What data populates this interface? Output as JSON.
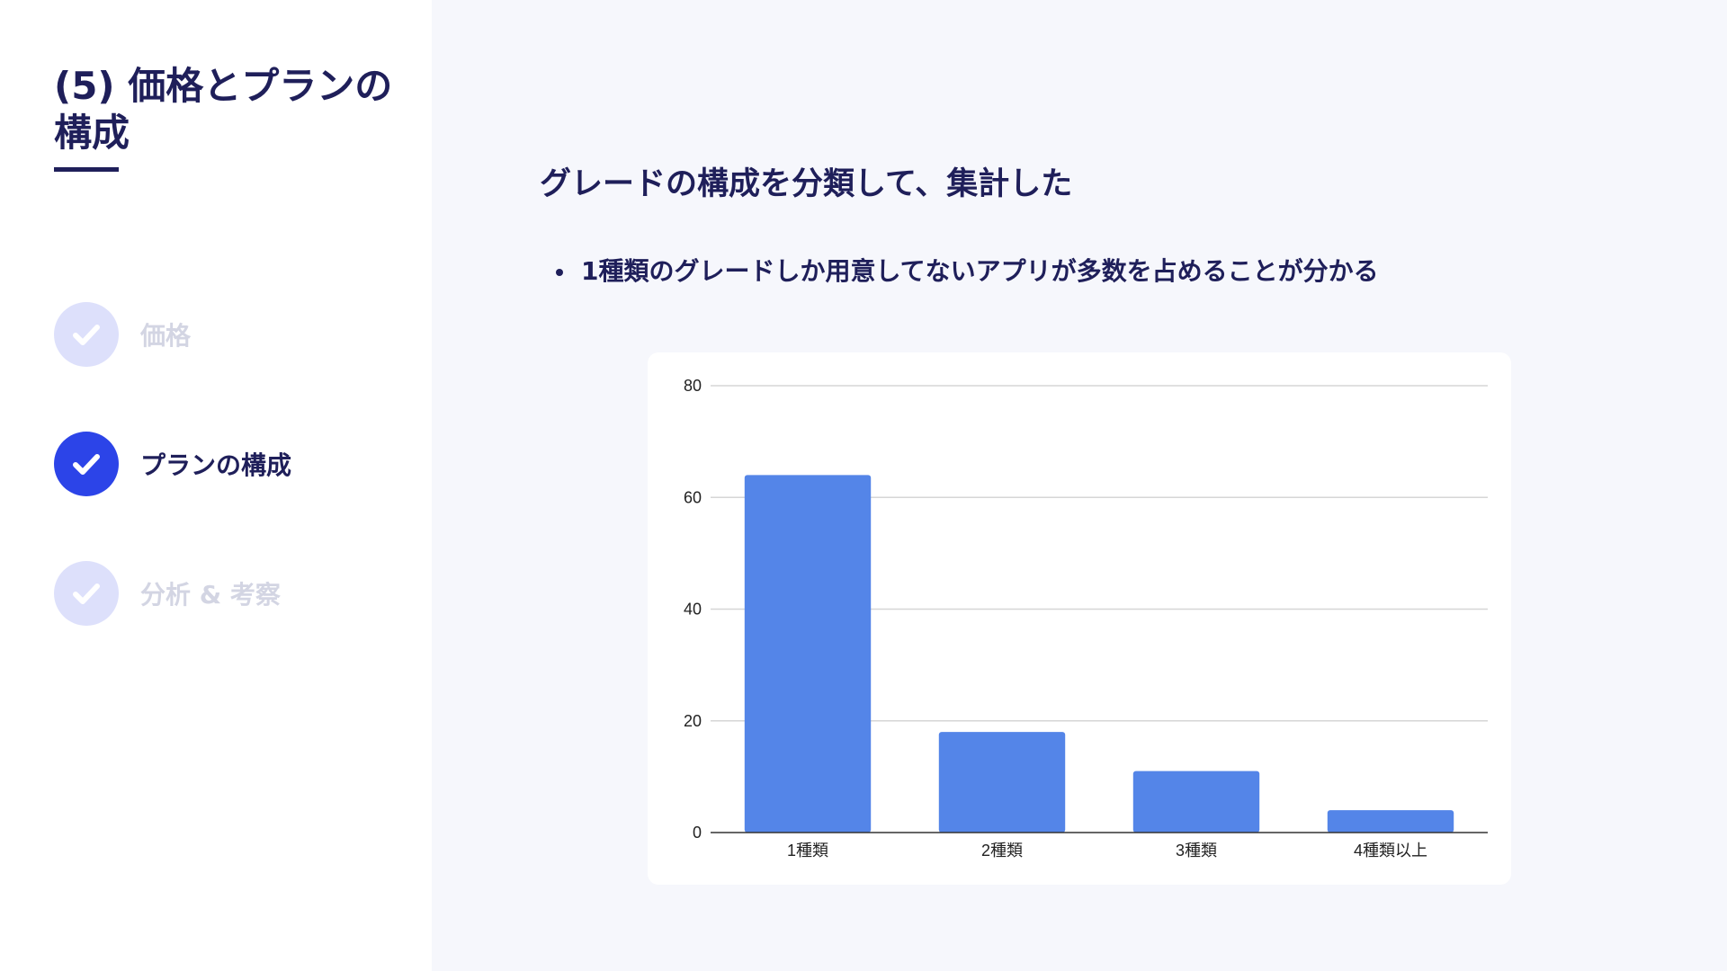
{
  "sidebar": {
    "title": "(5) 価格とプランの構成",
    "steps": [
      {
        "label": "価格",
        "state": "done"
      },
      {
        "label": "プランの構成",
        "state": "active"
      },
      {
        "label": "分析 & 考察",
        "state": "done"
      }
    ]
  },
  "main": {
    "heading": "グレードの構成を分類して、集計した",
    "bullets": [
      "1種類のグレードしか用意してないアプリが多数を占めることが分かる"
    ]
  },
  "icons": {
    "step_icon": "check-icon"
  },
  "colors": {
    "navy": "#1f1f5a",
    "accent": "#2c44e8",
    "inactive_circle": "#dde0fb",
    "bar": "#5485e8"
  },
  "chart_data": {
    "type": "bar",
    "categories": [
      "1種類",
      "2種類",
      "3種類",
      "4種類以上"
    ],
    "values": [
      64,
      18,
      11,
      4
    ],
    "ylim": [
      0,
      80
    ],
    "yticks": [
      0,
      20,
      40,
      60,
      80
    ],
    "title": "",
    "xlabel": "",
    "ylabel": "",
    "grid": true,
    "legend": "none"
  }
}
